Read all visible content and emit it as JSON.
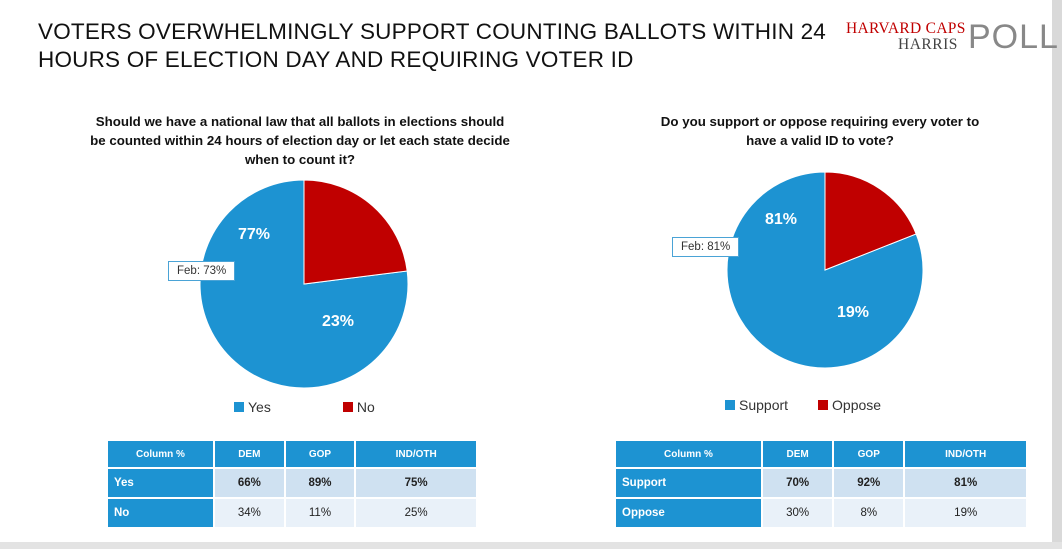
{
  "header": {
    "title": "VOTERS OVERWHELMINGLY SUPPORT COUNTING BALLOTS WITHIN 24 HOURS OF ELECTION DAY AND REQUIRING VOTER ID",
    "logo": {
      "line1": "HARVARD CAPS",
      "line2": "HARRIS",
      "line3": "POLL"
    }
  },
  "colors": {
    "blue": "#1d93d2",
    "red": "#c00000"
  },
  "chart_data": [
    {
      "type": "pie",
      "title": "Should we have a national law that all ballots in elections should be counted within 24 hours of election day or let each state decide when to count it?",
      "categories": [
        "Yes",
        "No"
      ],
      "values": [
        77,
        23
      ],
      "labels": [
        "77%",
        "23%"
      ],
      "colors": [
        "#1d93d2",
        "#c00000"
      ],
      "annotation": "Feb: 73%",
      "legend": [
        "Yes",
        "No"
      ],
      "legend_position": "bottom"
    },
    {
      "type": "pie",
      "title": "Do you support or oppose requiring every voter to have a valid ID to vote?",
      "categories": [
        "Support",
        "Oppose"
      ],
      "values": [
        81,
        19
      ],
      "labels": [
        "81%",
        "19%"
      ],
      "colors": [
        "#1d93d2",
        "#c00000"
      ],
      "annotation": "Feb: 81%",
      "legend": [
        "Support",
        "Oppose"
      ],
      "legend_position": "bottom"
    },
    {
      "type": "table",
      "headers": [
        "Column %",
        "DEM",
        "GOP",
        "IND/OTH"
      ],
      "rows": [
        {
          "label": "Yes",
          "values": [
            "66%",
            "89%",
            "75%"
          ]
        },
        {
          "label": "No",
          "values": [
            "34%",
            "11%",
            "25%"
          ]
        }
      ]
    },
    {
      "type": "table",
      "headers": [
        "Column %",
        "DEM",
        "GOP",
        "IND/OTH"
      ],
      "rows": [
        {
          "label": "Support",
          "values": [
            "70%",
            "92%",
            "81%"
          ]
        },
        {
          "label": "Oppose",
          "values": [
            "30%",
            "8%",
            "19%"
          ]
        }
      ]
    }
  ]
}
